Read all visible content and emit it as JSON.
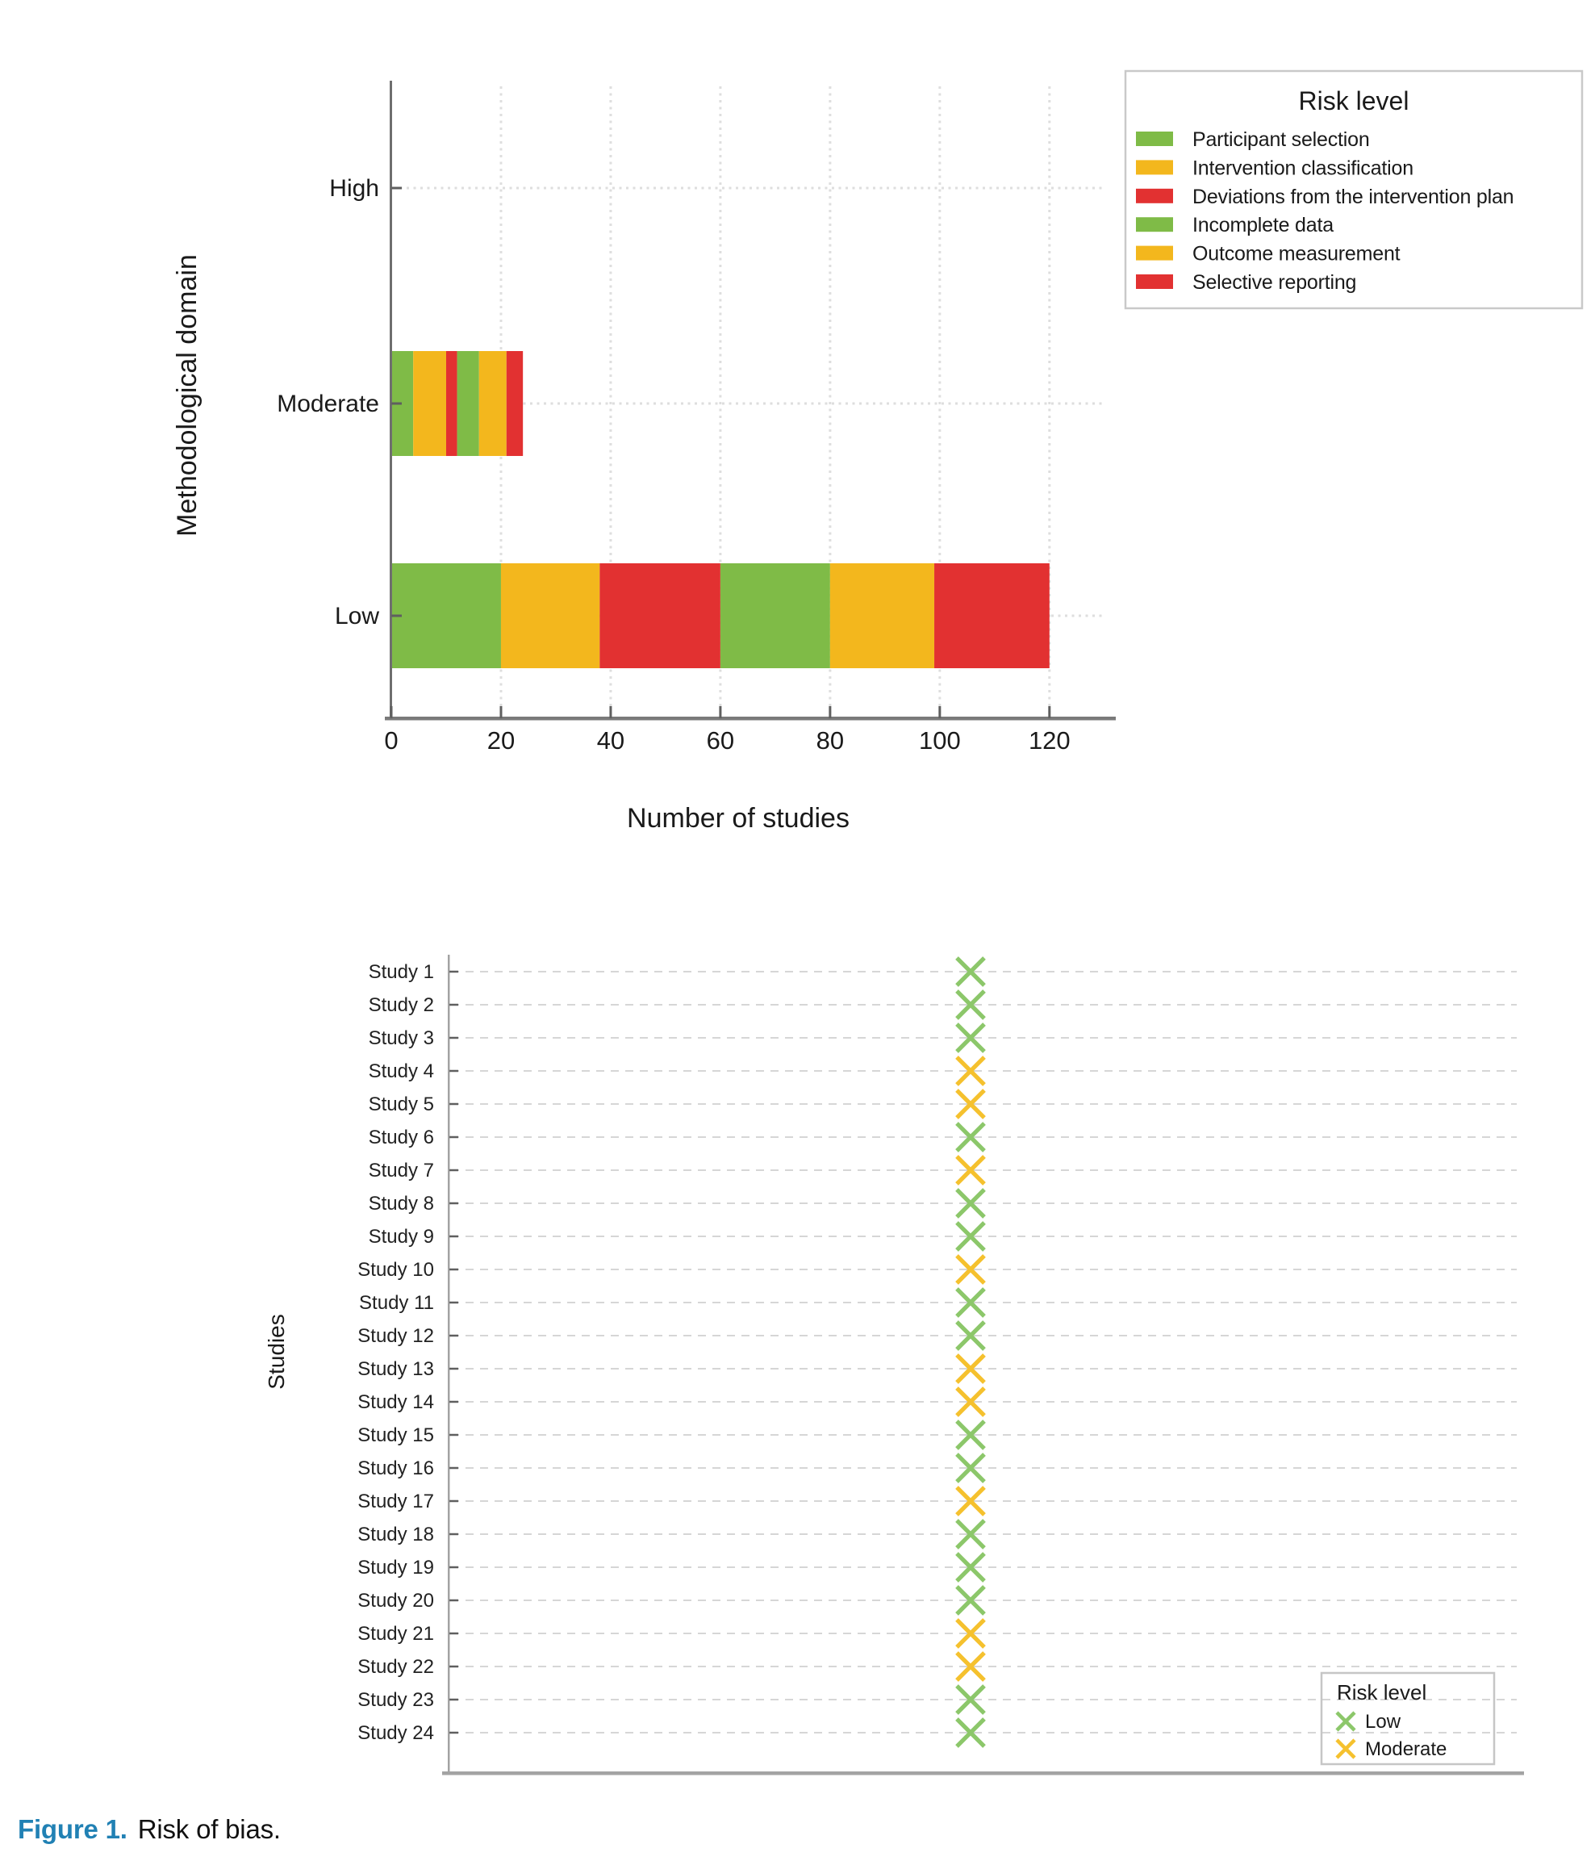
{
  "figure": {
    "caption_label": "Figure 1.",
    "caption_text": "Risk of bias."
  },
  "palette": {
    "green": "#7fbb47",
    "amber": "#f3b71d",
    "red": "#e23131",
    "marker_green": "#8cc76a",
    "marker_amber": "#f5c12e",
    "grid": "#dedede",
    "grid_light": "#d6d6d6",
    "axis_dark": "#7a7a7a",
    "axis_light": "#a3a3a3",
    "tick": "#5f5f5f",
    "text": "#1a1a1a",
    "legend_border": "#c9c9c9",
    "caption_blue": "#2181b4"
  },
  "chart_data": [
    {
      "type": "bar",
      "orientation": "horizontal_stacked",
      "title": "",
      "xlabel": "Number of studies",
      "ylabel": "Methodological domain",
      "categories": [
        "High",
        "Moderate",
        "Low"
      ],
      "x_ticks": [
        0,
        20,
        40,
        60,
        80,
        100,
        120
      ],
      "xlim": [
        0,
        126.5
      ],
      "grid": true,
      "legend_position": "top-right",
      "legend_title": "Risk level",
      "series": [
        {
          "name": "Participant selection",
          "color": "green",
          "values": [
            0,
            4,
            20
          ]
        },
        {
          "name": "Intervention classification",
          "color": "amber",
          "values": [
            0,
            6,
            18
          ]
        },
        {
          "name": "Deviations from the intervention plan",
          "color": "red",
          "values": [
            0,
            2,
            22
          ]
        },
        {
          "name": "Incomplete data",
          "color": "green",
          "values": [
            0,
            4,
            20
          ]
        },
        {
          "name": "Outcome measurement",
          "color": "amber",
          "values": [
            0,
            5,
            19
          ]
        },
        {
          "name": "Selective reporting",
          "color": "red",
          "values": [
            0,
            3,
            21
          ]
        }
      ]
    },
    {
      "type": "scatter",
      "marker": "x",
      "title": "",
      "xlabel": "",
      "ylabel": "Studies",
      "grid": true,
      "legend_position": "bottom-right-inside",
      "legend_title": "Risk level",
      "legend_entries": [
        {
          "label": "Low",
          "color": "marker_green"
        },
        {
          "label": "Moderate",
          "color": "marker_amber"
        }
      ],
      "risk_color": {
        "Low": "marker_green",
        "Moderate": "marker_amber"
      },
      "studies": [
        {
          "label": "Study 1",
          "risk": "Low"
        },
        {
          "label": "Study 2",
          "risk": "Low"
        },
        {
          "label": "Study 3",
          "risk": "Low"
        },
        {
          "label": "Study 4",
          "risk": "Moderate"
        },
        {
          "label": "Study 5",
          "risk": "Moderate"
        },
        {
          "label": "Study 6",
          "risk": "Low"
        },
        {
          "label": "Study 7",
          "risk": "Moderate"
        },
        {
          "label": "Study 8",
          "risk": "Low"
        },
        {
          "label": "Study 9",
          "risk": "Low"
        },
        {
          "label": "Study 10",
          "risk": "Moderate"
        },
        {
          "label": "Study 11",
          "risk": "Low"
        },
        {
          "label": "Study 12",
          "risk": "Low"
        },
        {
          "label": "Study 13",
          "risk": "Moderate"
        },
        {
          "label": "Study 14",
          "risk": "Moderate"
        },
        {
          "label": "Study 15",
          "risk": "Low"
        },
        {
          "label": "Study 16",
          "risk": "Low"
        },
        {
          "label": "Study 17",
          "risk": "Moderate"
        },
        {
          "label": "Study 18",
          "risk": "Low"
        },
        {
          "label": "Study 19",
          "risk": "Low"
        },
        {
          "label": "Study 20",
          "risk": "Low"
        },
        {
          "label": "Study 21",
          "risk": "Moderate"
        },
        {
          "label": "Study 22",
          "risk": "Moderate"
        },
        {
          "label": "Study 23",
          "risk": "Low"
        },
        {
          "label": "Study 24",
          "risk": "Low"
        }
      ]
    }
  ]
}
